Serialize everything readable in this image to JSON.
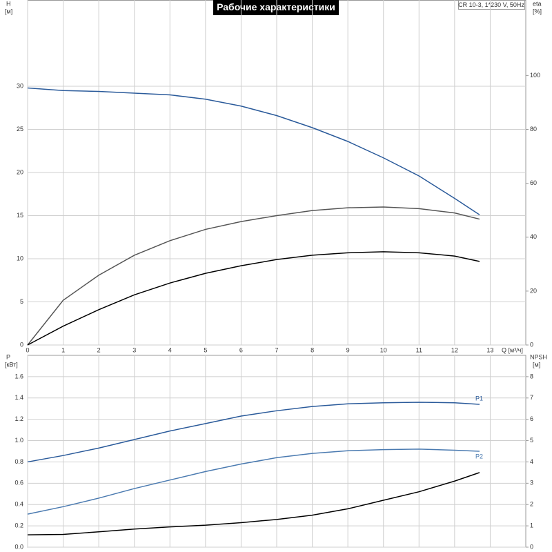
{
  "chart_data": [
    {
      "type": "line",
      "title": "Рабочие характеристики",
      "annotation": "CR 10-3, 1*230 V, 50Hz",
      "ylabel": "H",
      "yunit": "[м]",
      "y2label": "eta",
      "y2unit": "[%]",
      "xlabel": "Q [м³/ч]",
      "x": [
        0,
        1,
        2,
        3,
        4,
        5,
        6,
        7,
        8,
        9,
        10,
        11,
        12,
        12.7
      ],
      "xlim": [
        0,
        14
      ],
      "xticks": [
        0,
        1,
        2,
        3,
        4,
        5,
        6,
        7,
        8,
        9,
        10,
        11,
        12,
        13
      ],
      "ylim": [
        0,
        40
      ],
      "yticks": [
        0,
        5,
        10,
        15,
        20,
        25,
        30
      ],
      "y2lim": [
        0,
        128
      ],
      "y2ticks": [
        0,
        20,
        40,
        60,
        80,
        100
      ],
      "grid": true,
      "series": [
        {
          "color": "#2a5a9a",
          "values": [
            29.8,
            29.5,
            29.4,
            29.2,
            29.0,
            28.5,
            27.7,
            26.6,
            25.2,
            23.6,
            21.7,
            19.6,
            17.0,
            15.1
          ]
        },
        {
          "color": "#555555",
          "axis": "y2",
          "values": [
            0,
            16.6,
            25.9,
            33.3,
            38.7,
            42.9,
            45.8,
            48,
            49.9,
            50.9,
            51.2,
            50.6,
            49,
            46.7
          ]
        },
        {
          "color": "#000000",
          "axis": "y2",
          "values": [
            0,
            7,
            13.1,
            18.6,
            23,
            26.6,
            29.4,
            31.7,
            33.3,
            34.2,
            34.6,
            34.2,
            33,
            31
          ]
        }
      ]
    },
    {
      "type": "line",
      "ylabel": "P",
      "yunit": "[кВт]",
      "y2label": "NPSH",
      "y2unit": "[м]",
      "x": [
        0,
        1,
        2,
        3,
        4,
        5,
        6,
        7,
        8,
        9,
        10,
        11,
        12,
        12.7
      ],
      "xlim": [
        0,
        14
      ],
      "ylim": [
        0,
        1.8
      ],
      "yticks": [
        {
          "value": 0,
          "label": "0.0"
        },
        0.2,
        0.4,
        0.6,
        0.8,
        {
          "value": 1,
          "label": "1.0"
        },
        1.2,
        1.4,
        1.6
      ],
      "y2lim": [
        0,
        9
      ],
      "y2ticks": [
        0,
        1,
        2,
        3,
        4,
        5,
        6,
        7,
        8
      ],
      "grid": true,
      "series": [
        {
          "name": "P1",
          "color": "#2a5a9a",
          "values": [
            0.8,
            0.86,
            0.93,
            1.01,
            1.09,
            1.16,
            1.23,
            1.28,
            1.32,
            1.345,
            1.355,
            1.36,
            1.355,
            1.34
          ]
        },
        {
          "name": "P2",
          "color": "#4a7ab0",
          "values": [
            0.31,
            0.38,
            0.46,
            0.55,
            0.63,
            0.71,
            0.78,
            0.84,
            0.88,
            0.905,
            0.915,
            0.92,
            0.91,
            0.9
          ]
        },
        {
          "color": "#000000",
          "axis": "y2",
          "values": [
            0.58,
            0.6,
            0.72,
            0.85,
            0.95,
            1.03,
            1.15,
            1.3,
            1.5,
            1.8,
            2.2,
            2.6,
            3.1,
            3.5
          ]
        }
      ]
    }
  ]
}
